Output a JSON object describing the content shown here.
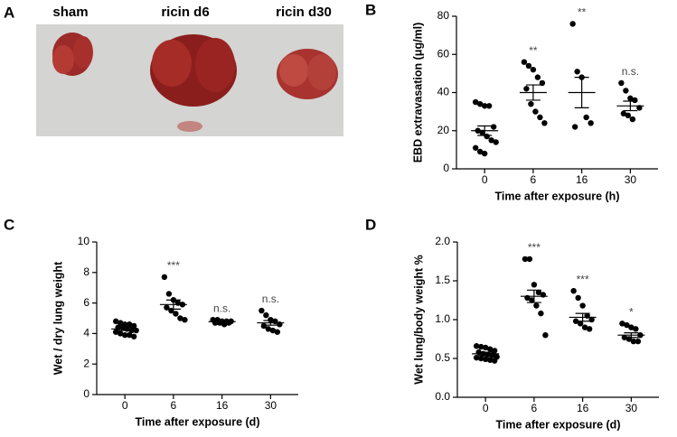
{
  "photo_panel": {
    "label": "A",
    "captions": [
      "sham",
      "ricin d6",
      "ricin d30"
    ]
  },
  "chart_data": [
    {
      "type": "dotplot",
      "panel_label": "B",
      "ylabel": "EBD extravasation (μg/ml)",
      "xlabel": "Time after exposure (h)",
      "categories": [
        "0",
        "6",
        "16",
        "30"
      ],
      "points": [
        [
          35,
          34,
          33,
          33,
          22,
          20,
          19,
          17,
          15,
          14,
          11,
          9,
          8
        ],
        [
          56,
          54,
          52,
          48,
          45,
          42,
          34,
          30,
          27,
          24
        ],
        [
          76,
          51,
          48,
          27,
          24,
          22
        ],
        [
          45,
          41,
          37,
          36,
          32,
          29,
          28,
          26
        ]
      ],
      "means": [
        20,
        40,
        40,
        33
      ],
      "sems": [
        2.5,
        4,
        8,
        2.5
      ],
      "significance": [
        null,
        "**",
        "**",
        "n.s."
      ],
      "ylim": [
        0,
        80
      ],
      "yticks": [
        0,
        20,
        40,
        60,
        80
      ],
      "color": "#000000"
    },
    {
      "type": "dotplot",
      "panel_label": "C",
      "ylabel": "Wet / dry lung weight",
      "xlabel": "Time after exposure (d)",
      "categories": [
        "0",
        "6",
        "16",
        "30"
      ],
      "points": [
        [
          4.8,
          4.7,
          4.6,
          4.6,
          4.5,
          4.4,
          4.4,
          4.3,
          4.2,
          4.2,
          4.1,
          4.0,
          3.9,
          3.9,
          3.8
        ],
        [
          7.7,
          6.6,
          6.2,
          6.0,
          5.9,
          5.7,
          5.5,
          5.3,
          5.0,
          4.9
        ],
        [
          4.9,
          4.9,
          4.8,
          4.8,
          4.8,
          4.7,
          4.7,
          4.6,
          4.7
        ],
        [
          5.5,
          5.2,
          4.9,
          4.8,
          4.6,
          4.5,
          4.3,
          4.2,
          4.1
        ]
      ],
      "means": [
        4.3,
        5.9,
        4.78,
        4.7
      ],
      "sems": [
        0.1,
        0.3,
        0.05,
        0.15
      ],
      "significance": [
        null,
        "***",
        "n.s.",
        "n.s."
      ],
      "ylim": [
        0,
        10
      ],
      "yticks": [
        0,
        2,
        4,
        6,
        8,
        10
      ],
      "color": "#000000"
    },
    {
      "type": "dotplot",
      "panel_label": "D",
      "ylabel": "Wet lung/body weight %",
      "xlabel": "Time after exposure (d)",
      "categories": [
        "0",
        "6",
        "16",
        "30"
      ],
      "points": [
        [
          0.66,
          0.65,
          0.64,
          0.62,
          0.6,
          0.58,
          0.56,
          0.55,
          0.54,
          0.52,
          0.51,
          0.5,
          0.49,
          0.48,
          0.47
        ],
        [
          1.78,
          1.78,
          1.45,
          1.35,
          1.32,
          1.28,
          1.25,
          1.18,
          1.08,
          0.8
        ],
        [
          1.37,
          1.28,
          1.18,
          1.05,
          1.0,
          0.98,
          0.95,
          0.9,
          0.88
        ],
        [
          0.95,
          0.93,
          0.9,
          0.88,
          0.8,
          0.77,
          0.75,
          0.72,
          0.72
        ]
      ],
      "means": [
        0.56,
        1.3,
        1.03,
        0.8
      ],
      "sems": [
        0.02,
        0.08,
        0.05,
        0.03
      ],
      "significance": [
        null,
        "***",
        "***",
        "*"
      ],
      "ylim": [
        0,
        2
      ],
      "yticks": [
        {
          "value": 0,
          "label": "0.0"
        },
        0.5,
        {
          "value": 1,
          "label": "1.0"
        },
        1.5,
        {
          "value": 2,
          "label": "2.0"
        }
      ],
      "color": "#000000"
    }
  ]
}
